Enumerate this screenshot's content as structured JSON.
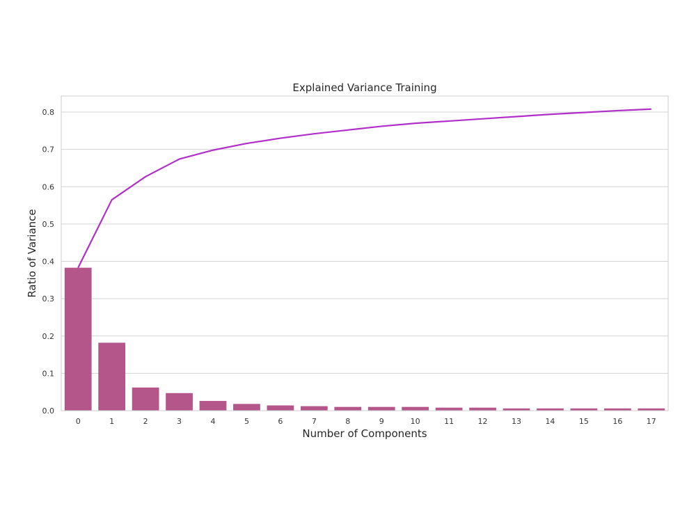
{
  "chart_data": {
    "type": "bar",
    "title": "Explained Variance Training",
    "xlabel": "Number of Components",
    "ylabel": "Ratio of Variance",
    "categories": [
      "0",
      "1",
      "2",
      "3",
      "4",
      "5",
      "6",
      "7",
      "8",
      "9",
      "10",
      "11",
      "12",
      "13",
      "14",
      "15",
      "16",
      "17"
    ],
    "ylim": [
      0,
      0.843
    ],
    "yticks": [
      "0.0",
      "0.1",
      "0.2",
      "0.3",
      "0.4",
      "0.5",
      "0.6",
      "0.7",
      "0.8"
    ],
    "grid": "horizontal",
    "series": [
      {
        "type": "bar",
        "values": [
          0.383,
          0.182,
          0.062,
          0.047,
          0.026,
          0.018,
          0.014,
          0.012,
          0.01,
          0.01,
          0.01,
          0.008,
          0.008,
          0.006,
          0.006,
          0.006,
          0.006,
          0.006
        ],
        "color": "#b5568a"
      },
      {
        "type": "line",
        "values": [
          0.383,
          0.565,
          0.627,
          0.674,
          0.698,
          0.716,
          0.73,
          0.742,
          0.752,
          0.762,
          0.77,
          0.776,
          0.782,
          0.788,
          0.794,
          0.799,
          0.804,
          0.808
        ],
        "color": "#b12fc9"
      }
    ]
  }
}
